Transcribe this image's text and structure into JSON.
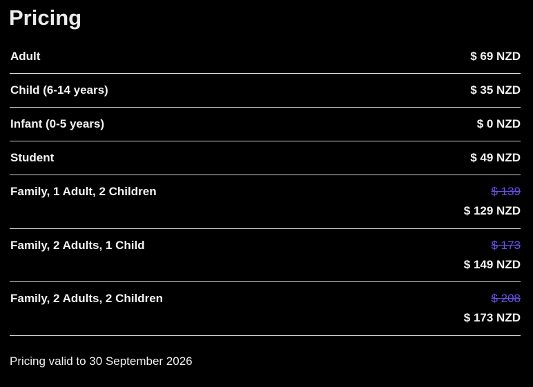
{
  "title": "Pricing",
  "rows": [
    {
      "label": "Adult",
      "price": "$ 69 NZD"
    },
    {
      "label": "Child (6-14 years)",
      "price": "$ 35 NZD"
    },
    {
      "label": "Infant (0-5 years)",
      "price": "$ 0 NZD"
    },
    {
      "label": "Student",
      "price": "$ 49 NZD"
    },
    {
      "label": "Family, 1 Adult, 2 Children",
      "original": "$ 139",
      "price": "$ 129 NZD"
    },
    {
      "label": "Family, 2 Adults, 1 Child",
      "original": "$ 173",
      "price": "$ 149 NZD"
    },
    {
      "label": "Family, 2 Adults, 2 Children",
      "original": "$ 208",
      "price": "$ 173 NZD"
    }
  ],
  "footer": "Pricing valid to 30 September 2026",
  "colors": {
    "background": "#000000",
    "text": "#f2f2f2",
    "strikethrough": "#6b4cf5"
  }
}
